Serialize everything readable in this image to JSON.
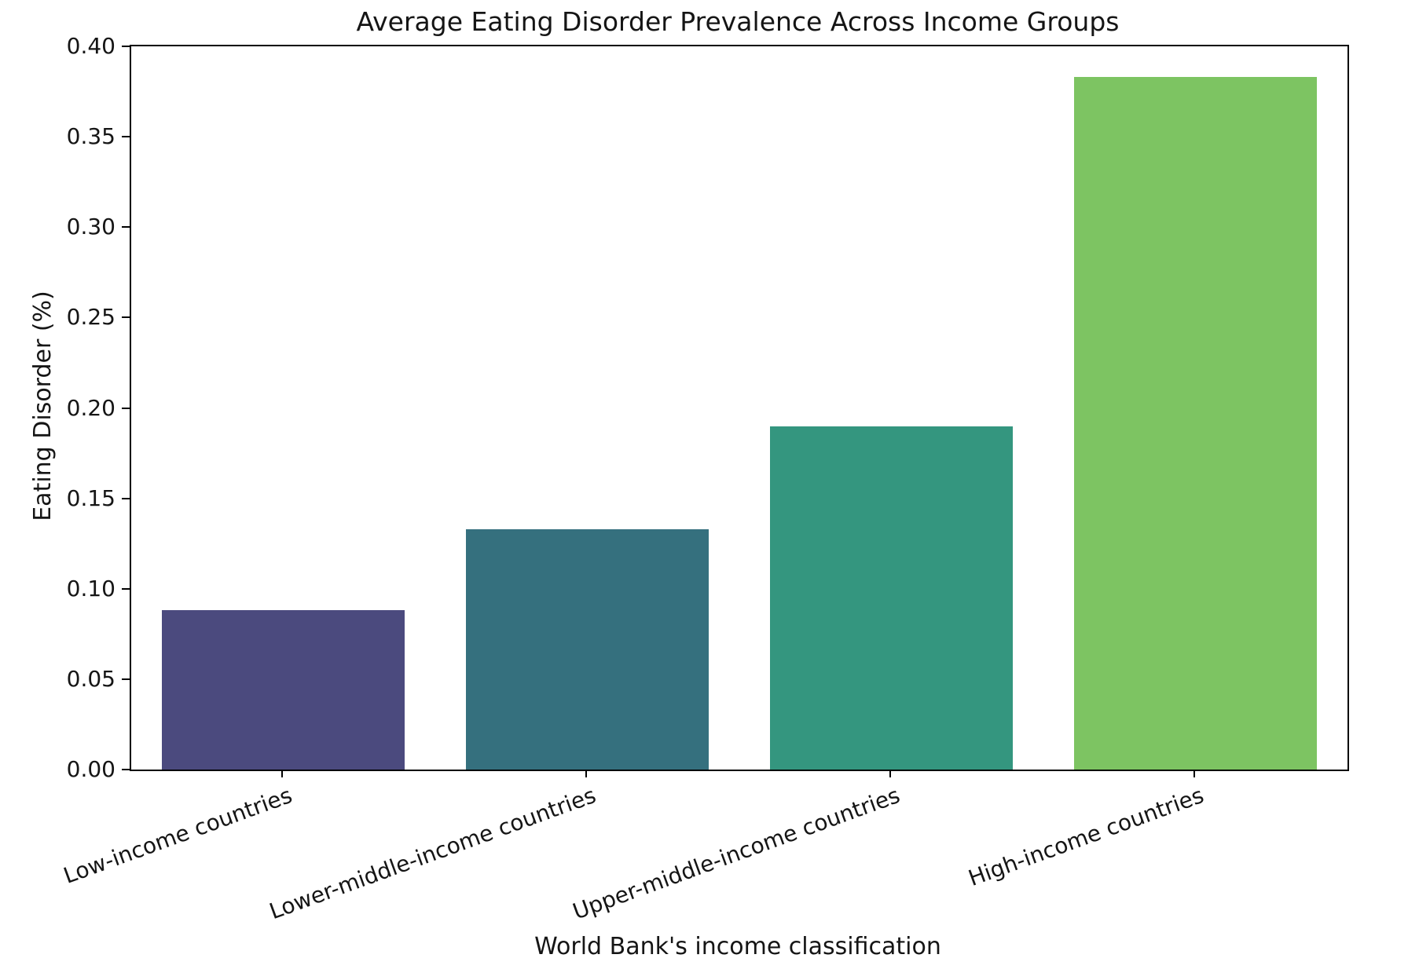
{
  "chart_data": {
    "type": "bar",
    "title": "Average Eating Disorder Prevalence Across Income Groups",
    "xlabel": "World Bank's income classification",
    "ylabel": "Eating Disorder (%)",
    "categories": [
      "Low-income countries",
      "Lower-middle-income countries",
      "Upper-middle-income countries",
      "High-income countries"
    ],
    "values": [
      0.088,
      0.133,
      0.19,
      0.383
    ],
    "bar_colors": [
      "#4b4a7e",
      "#35707e",
      "#34967f",
      "#7dc462"
    ],
    "ylim": [
      0,
      0.4
    ],
    "yticks": [
      "0.00",
      "0.05",
      "0.10",
      "0.15",
      "0.20",
      "0.25",
      "0.30",
      "0.35",
      "0.40"
    ],
    "grid": false,
    "legend": "none",
    "xtick_rotation_deg": 20,
    "bar_width_fraction": 0.8
  },
  "figure": {
    "background": "#ffffff",
    "spine_color": "#000000",
    "text_color": "#151515"
  }
}
